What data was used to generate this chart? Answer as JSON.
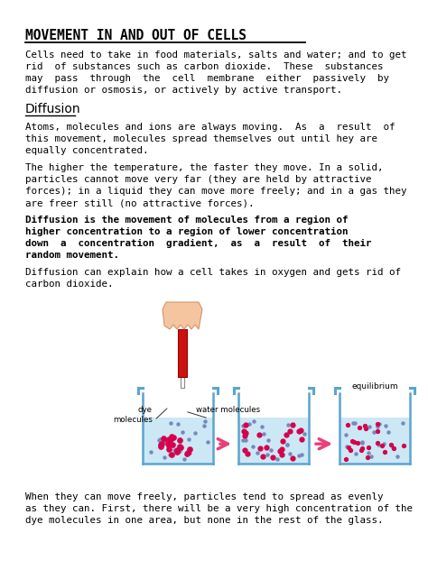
{
  "title": "MOVEMENT IN AND OUT OF CELLS",
  "bg_color": "#ffffff",
  "text_color": "#000000",
  "intro_lines": [
    "Cells need to take in food materials, salts and water; and to get",
    "rid  of substances such as carbon dioxide.  These  substances",
    "may  pass  through  the  cell  membrane  either  passively  by",
    "diffusion or osmosis, or actively by active transport."
  ],
  "section1_title": "Diffusion",
  "para1_lines": [
    "Atoms, molecules and ions are always moving.  As  a  result  of",
    "this movement, molecules spread themselves out until hey are",
    "equally concentrated."
  ],
  "para2_lines": [
    "The higher the temperature, the faster they move. In a solid,",
    "particles cannot move very far (they are held by attractive",
    "forces); in a liquid they can move more freely; and in a gas they",
    "are freer still (no attractive forces)."
  ],
  "para3_lines": [
    "Diffusion is the movement of molecules from a region of",
    "higher concentration to a region of lower concentration",
    "down  a  concentration  gradient,  as  a  result  of  their",
    "random movement."
  ],
  "para4_lines": [
    "Diffusion can explain how a cell takes in oxygen and gets rid of",
    "carbon dioxide."
  ],
  "caption_lines": [
    "When they can move freely, particles tend to spread as evenly",
    "as they can. First, there will be a very high concentration of the",
    "dye molecules in one area, but none in the rest of the glass."
  ],
  "label_dye": "dye\nmolecules",
  "label_water": "water molecules",
  "label_equilibrium": "equilibrium",
  "liq_color": "#cce8f5",
  "beaker_edge": "#5ba4cf",
  "dye_dot_color": "#d6004c",
  "water_dot_color": "#7788bb",
  "arrow_color": "#e8407a",
  "tube_color": "#cc1111",
  "hand_color": "#f5c5a0",
  "hand_edge": "#d4956a"
}
